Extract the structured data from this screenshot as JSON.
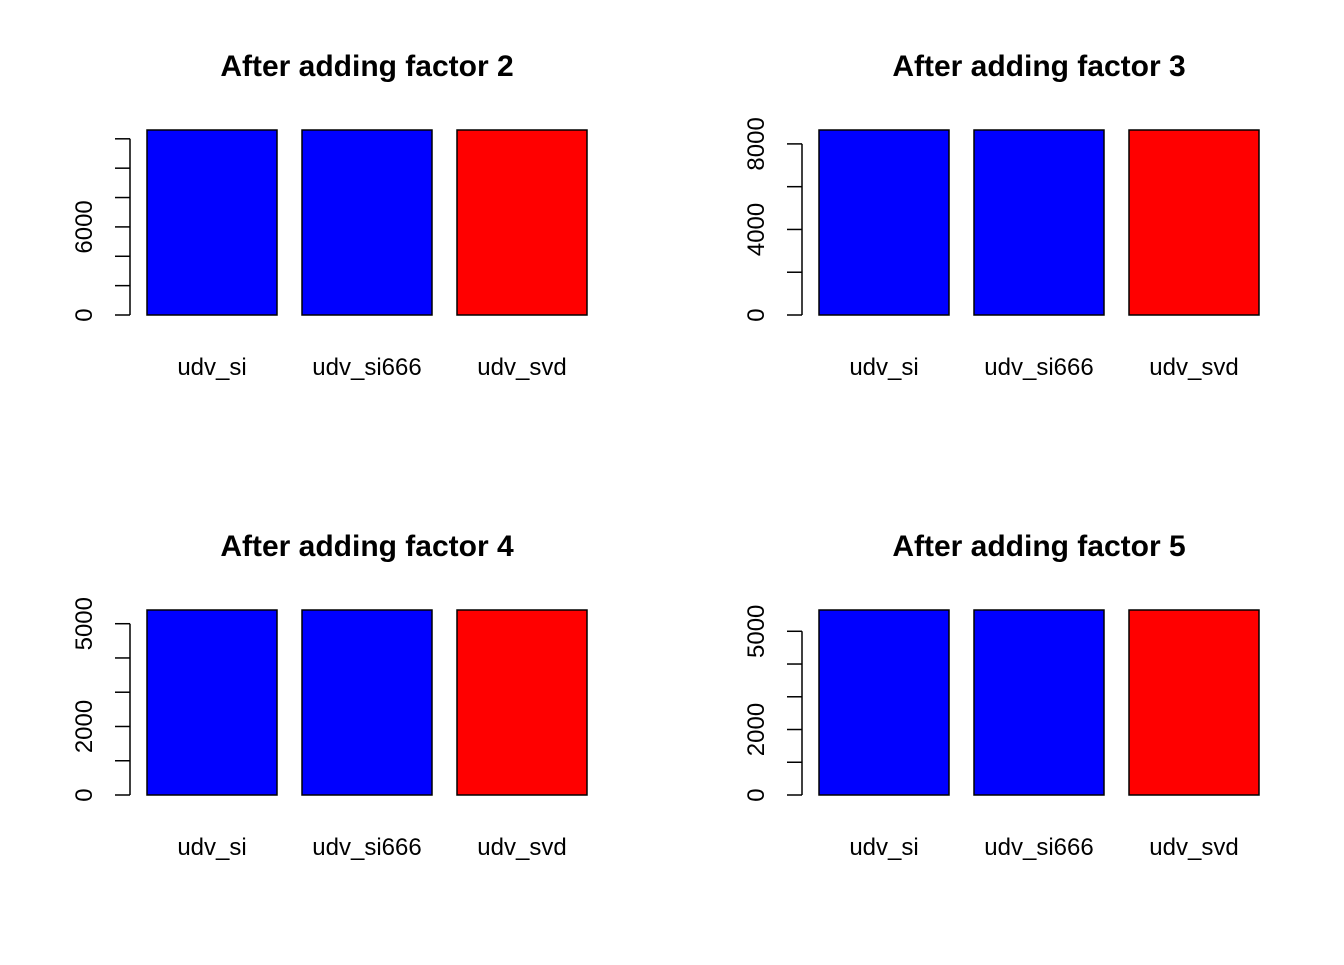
{
  "chart_data": [
    {
      "type": "bar",
      "title": "After adding factor 2",
      "categories": [
        "udv_si",
        "udv_si666",
        "udv_svd"
      ],
      "values": [
        12600,
        12600,
        12600
      ],
      "colors": [
        "#0000ff",
        "#0000ff",
        "#ff0000"
      ],
      "xlabel": "",
      "ylabel": "",
      "ylim": [
        0,
        12600
      ],
      "tick_values": [
        0,
        2000,
        4000,
        6000,
        8000,
        10000,
        12000
      ],
      "tick_labels": [
        "0",
        "",
        "",
        "6000",
        "",
        "",
        ""
      ]
    },
    {
      "type": "bar",
      "title": "After adding factor 3",
      "categories": [
        "udv_si",
        "udv_si666",
        "udv_svd"
      ],
      "values": [
        8650,
        8650,
        8650
      ],
      "colors": [
        "#0000ff",
        "#0000ff",
        "#ff0000"
      ],
      "xlabel": "",
      "ylabel": "",
      "ylim": [
        0,
        8650
      ],
      "tick_values": [
        0,
        2000,
        4000,
        6000,
        8000
      ],
      "tick_labels": [
        "0",
        "",
        "4000",
        "",
        "8000"
      ]
    },
    {
      "type": "bar",
      "title": "After adding factor 4",
      "categories": [
        "udv_si",
        "udv_si666",
        "udv_svd"
      ],
      "values": [
        5400,
        5400,
        5400
      ],
      "colors": [
        "#0000ff",
        "#0000ff",
        "#ff0000"
      ],
      "xlabel": "",
      "ylabel": "",
      "ylim": [
        0,
        5400
      ],
      "tick_values": [
        0,
        1000,
        2000,
        3000,
        4000,
        5000
      ],
      "tick_labels": [
        "0",
        "",
        "2000",
        "",
        "",
        "5000"
      ]
    },
    {
      "type": "bar",
      "title": "After adding factor 5",
      "categories": [
        "udv_si",
        "udv_si666",
        "udv_svd"
      ],
      "values": [
        5650,
        5650,
        5650
      ],
      "colors": [
        "#0000ff",
        "#0000ff",
        "#ff0000"
      ],
      "xlabel": "",
      "ylabel": "",
      "ylim": [
        0,
        5650
      ],
      "tick_values": [
        0,
        1000,
        2000,
        3000,
        4000,
        5000
      ],
      "tick_labels": [
        "0",
        "",
        "2000",
        "",
        "",
        "5000"
      ]
    }
  ]
}
